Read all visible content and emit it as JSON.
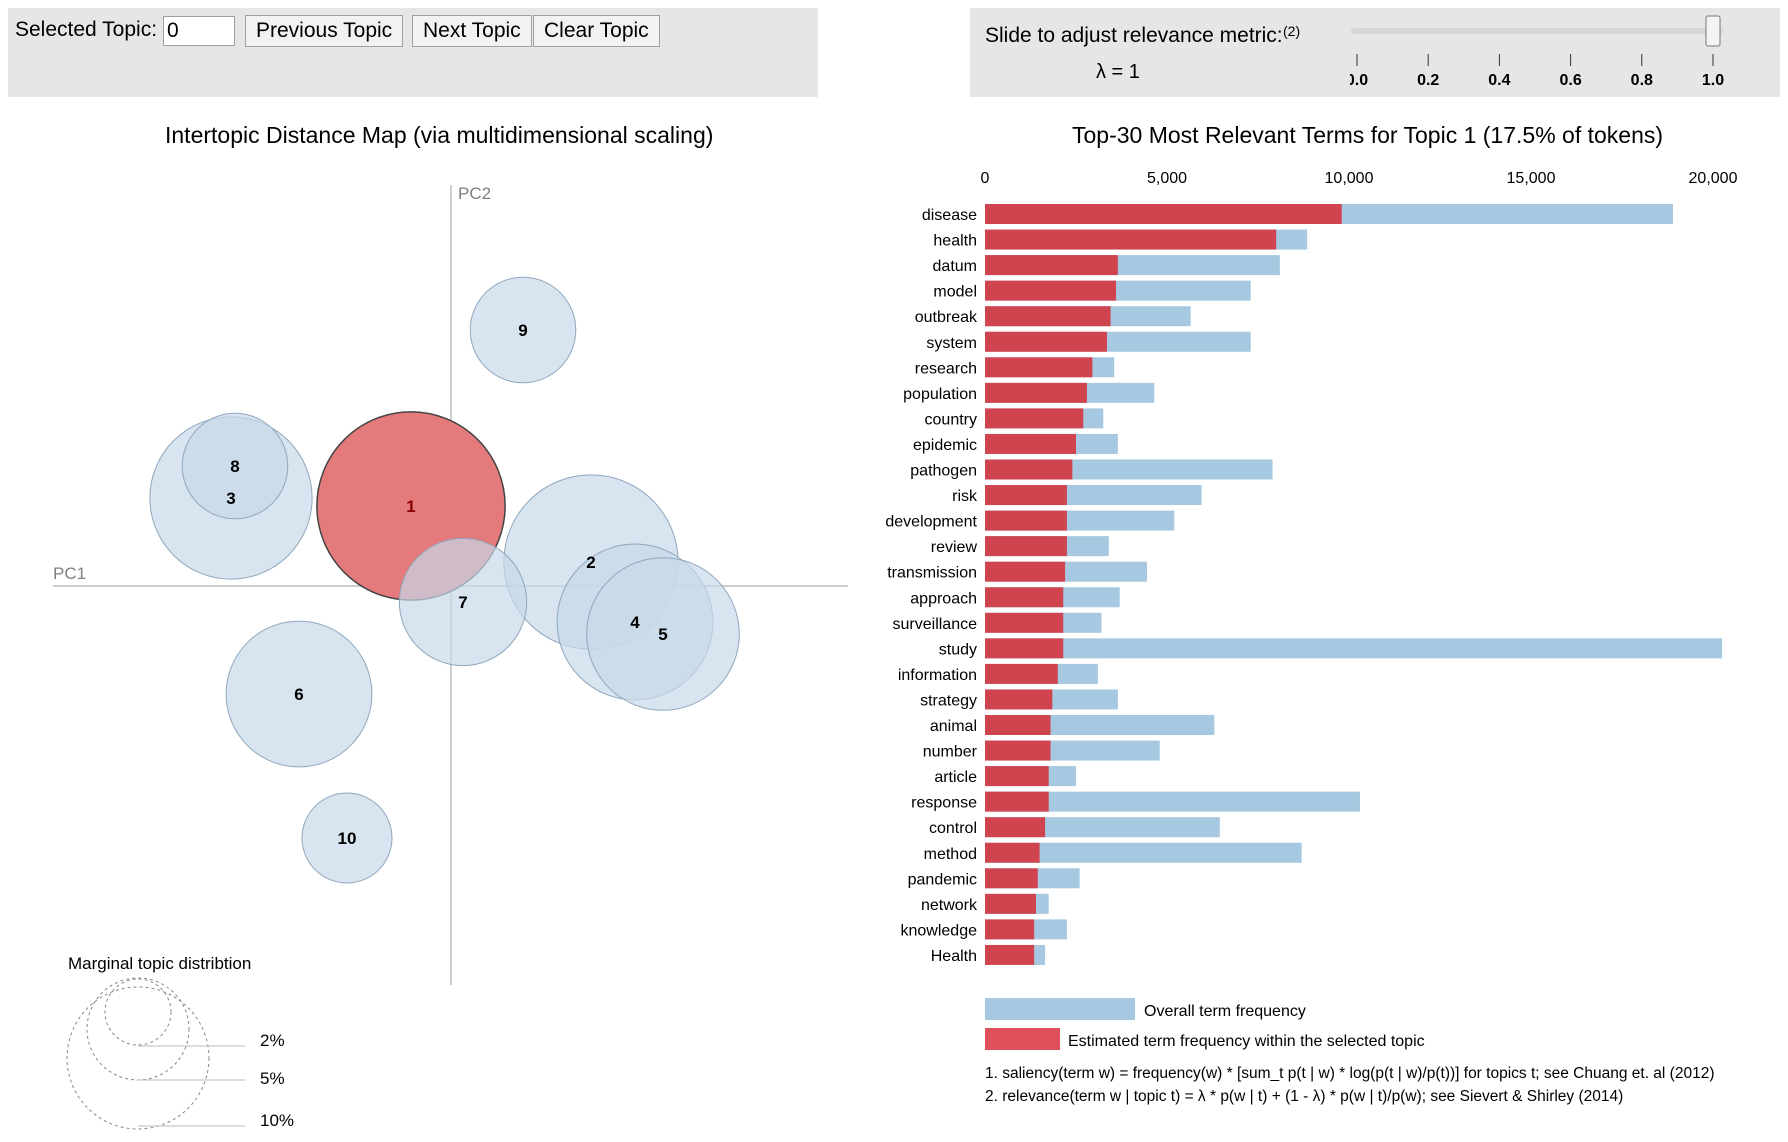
{
  "controls": {
    "selected_topic_label": "Selected Topic:",
    "selected_topic_value": "0",
    "prev_label": "Previous Topic",
    "next_label": "Next Topic",
    "clear_label": "Clear Topic",
    "slider_label": "Slide to adjust relevance metric:",
    "slider_note": "(2)",
    "lambda_text": "λ = 1",
    "slider_value": 1,
    "slider_ticks": [
      "0.0",
      "0.2",
      "0.4",
      "0.6",
      "0.8",
      "1.0"
    ]
  },
  "map": {
    "title": "Intertopic Distance Map (via multidimensional scaling)",
    "pc1_label": "PC1",
    "pc2_label": "PC2",
    "legend_title": "Marginal topic distribtion",
    "legend_sizes": [
      "2%",
      "5%",
      "10%"
    ]
  },
  "bars": {
    "title": "Top-30 Most Relevant Terms for Topic 1 (17.5% of tokens)",
    "legend_overall": "Overall term frequency",
    "legend_estimated": "Estimated term frequency within the selected topic",
    "note1": "1. saliency(term w) = frequency(w) * [sum_t p(t | w) * log(p(t | w)/p(t))] for topics t; see Chuang et. al (2012)",
    "note2": "2. relevance(term w | topic t) = λ * p(w | t) + (1 - λ) * p(w | t)/p(w); see Sievert & Shirley (2014)"
  },
  "colors": {
    "overall": "#a6c8e0",
    "estimated": "#d0444f",
    "topic_bubble": "#c7d9e8",
    "selected_bubble": "#e57a7c",
    "panel": "#e6e6e6"
  },
  "chart_data": [
    {
      "type": "scatter",
      "title": "Intertopic Distance Map (via multidimensional scaling)",
      "xlabel": "PC1",
      "ylabel": "PC2",
      "selected_topic": "1",
      "points": [
        {
          "topic": "1",
          "x": -0.05,
          "y": 0.1,
          "size_pct": 17.5
        },
        {
          "topic": "2",
          "x": 0.175,
          "y": 0.03,
          "size_pct": 15.0
        },
        {
          "topic": "3",
          "x": -0.275,
          "y": 0.11,
          "size_pct": 13.0
        },
        {
          "topic": "4",
          "x": 0.23,
          "y": -0.045,
          "size_pct": 12.0
        },
        {
          "topic": "5",
          "x": 0.265,
          "y": -0.06,
          "size_pct": 11.5
        },
        {
          "topic": "6",
          "x": -0.19,
          "y": -0.135,
          "size_pct": 10.5
        },
        {
          "topic": "7",
          "x": 0.015,
          "y": -0.02,
          "size_pct": 8.0
        },
        {
          "topic": "8",
          "x": -0.27,
          "y": 0.15,
          "size_pct": 5.5
        },
        {
          "topic": "9",
          "x": 0.09,
          "y": 0.32,
          "size_pct": 5.5
        },
        {
          "topic": "10",
          "x": -0.13,
          "y": -0.315,
          "size_pct": 4.0
        }
      ]
    },
    {
      "type": "bar",
      "orientation": "horizontal",
      "title": "Top-30 Most Relevant Terms for Topic 1 (17.5% of tokens)",
      "xlim": [
        0,
        20000
      ],
      "xticks": [
        "0",
        "5,000",
        "10,000",
        "15,000",
        "20,000"
      ],
      "categories": [
        "disease",
        "health",
        "datum",
        "model",
        "outbreak",
        "system",
        "research",
        "population",
        "country",
        "epidemic",
        "pathogen",
        "risk",
        "development",
        "review",
        "transmission",
        "approach",
        "surveillance",
        "study",
        "information",
        "strategy",
        "animal",
        "number",
        "article",
        "response",
        "control",
        "method",
        "pandemic",
        "network",
        "knowledge",
        "Health"
      ],
      "series": [
        {
          "name": "Overall term frequency",
          "values": [
            18900,
            8850,
            8100,
            7300,
            5650,
            7300,
            3550,
            4650,
            3250,
            3650,
            7900,
            5950,
            5200,
            3400,
            4450,
            3700,
            3200,
            20250,
            3100,
            3650,
            6300,
            4800,
            2500,
            10300,
            6450,
            8700,
            2600,
            1750,
            2250,
            1650
          ]
        },
        {
          "name": "Estimated term frequency within the selected topic",
          "values": [
            9800,
            8000,
            3650,
            3600,
            3450,
            3350,
            2950,
            2800,
            2700,
            2500,
            2400,
            2250,
            2250,
            2250,
            2200,
            2150,
            2150,
            2150,
            2000,
            1850,
            1800,
            1800,
            1750,
            1750,
            1650,
            1500,
            1450,
            1400,
            1350,
            1350
          ]
        }
      ]
    }
  ]
}
